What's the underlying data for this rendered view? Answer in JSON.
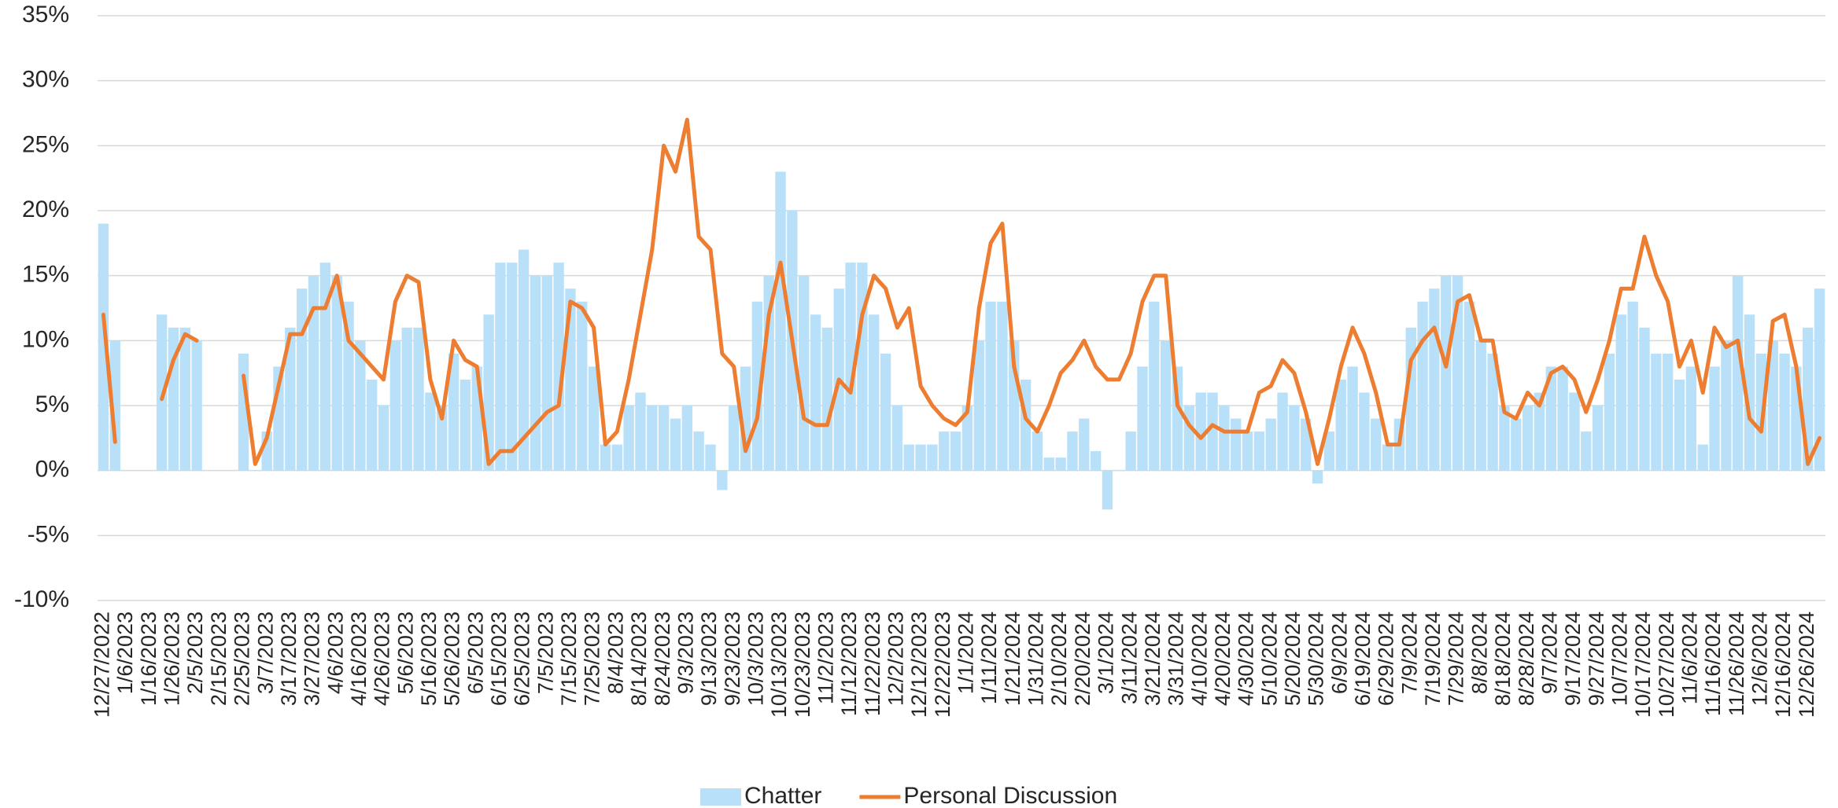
{
  "chart_data": {
    "type": "bar",
    "categories": [
      "12/27/2022",
      null,
      "1/6/2023",
      null,
      "1/16/2023",
      null,
      "1/26/2023",
      null,
      "2/5/2023",
      null,
      "2/15/2023",
      null,
      "2/25/2023",
      null,
      "3/7/2023",
      null,
      "3/17/2023",
      null,
      "3/27/2023",
      null,
      "4/6/2023",
      null,
      "4/16/2023",
      null,
      "4/26/2023",
      null,
      "5/6/2023",
      null,
      "5/16/2023",
      null,
      "5/26/2023",
      null,
      "6/5/2023",
      null,
      "6/15/2023",
      null,
      "6/25/2023",
      null,
      "7/5/2023",
      null,
      "7/15/2023",
      null,
      "7/25/2023",
      null,
      "8/4/2023",
      null,
      "8/14/2023",
      null,
      "8/24/2023",
      null,
      "9/3/2023",
      null,
      "9/13/2023",
      null,
      "9/23/2023",
      null,
      "10/3/2023",
      null,
      "10/13/2023",
      null,
      "10/23/2023",
      null,
      "11/2/2023",
      null,
      "11/12/2023",
      null,
      "11/22/2023",
      null,
      "12/2/2023",
      null,
      "12/12/2023",
      null,
      "12/22/2023",
      null,
      "1/1/2024",
      null,
      "1/11/2024",
      null,
      "1/21/2024",
      null,
      "1/31/2024",
      null,
      "2/10/2024",
      null,
      "2/20/2024",
      null,
      "3/1/2024",
      null,
      "3/11/2024",
      null,
      "3/21/2024",
      null,
      "3/31/2024",
      null,
      "4/10/2024",
      null,
      "4/20/2024",
      null,
      "4/30/2024",
      null,
      "5/10/2024",
      null,
      "5/20/2024",
      null,
      "5/30/2024",
      null,
      "6/9/2024",
      null,
      "6/19/2024",
      null,
      "6/29/2024",
      null,
      "7/9/2024",
      null,
      "7/19/2024",
      null,
      "7/29/2024",
      null,
      "8/8/2024",
      null,
      "8/18/2024",
      null,
      "8/28/2024",
      null,
      "9/7/2024",
      null,
      "9/17/2024",
      null,
      "9/27/2024",
      null,
      "10/7/2024",
      null,
      "10/17/2024",
      null,
      "10/27/2024",
      null,
      "11/6/2024",
      null,
      "11/16/2024",
      null,
      "11/26/2024",
      null,
      "12/6/2024",
      null,
      "12/16/2024",
      null,
      "12/26/2024",
      null
    ],
    "series": [
      {
        "name": "Chatter",
        "type": "bar",
        "color": "#b8e0f8",
        "values": [
          19,
          10,
          null,
          null,
          null,
          12,
          11,
          11,
          10,
          null,
          null,
          null,
          9,
          0,
          3,
          8,
          11,
          14,
          15,
          16,
          15,
          13,
          10,
          7,
          5,
          10,
          11,
          11,
          6,
          5,
          9,
          7,
          8,
          12,
          16,
          16,
          17,
          15,
          15,
          16,
          14,
          13,
          8,
          2,
          2,
          5,
          6,
          5,
          5,
          4,
          5,
          3,
          2,
          -1.5,
          5,
          8,
          13,
          15,
          23,
          20,
          15,
          12,
          11,
          14,
          16,
          16,
          12,
          9,
          5,
          2,
          2,
          2,
          3,
          3,
          5,
          10,
          13,
          13,
          10,
          7,
          3,
          1,
          1,
          3,
          4,
          1.5,
          -3,
          0,
          3,
          8,
          13,
          10,
          8,
          5,
          6,
          6,
          5,
          4,
          3,
          3,
          4,
          6,
          5,
          4,
          -1,
          3,
          7,
          8,
          6,
          4,
          2,
          4,
          11,
          13,
          14,
          15,
          15,
          13,
          10,
          9,
          5,
          4,
          5,
          6,
          8,
          8,
          6,
          3,
          5,
          9,
          12,
          13,
          11,
          9,
          9,
          7,
          8,
          2,
          8,
          10,
          15,
          12,
          9,
          10,
          9,
          8,
          11,
          14
        ]
      },
      {
        "name": "Personal Discussion",
        "type": "line",
        "color": "#ed7d31",
        "values": [
          12,
          2.2,
          null,
          null,
          null,
          5.5,
          8.5,
          10.5,
          10,
          null,
          null,
          null,
          7.3,
          0.5,
          2.5,
          6.5,
          10.5,
          10.5,
          12.5,
          12.5,
          15,
          10,
          9,
          8,
          7,
          13,
          15,
          14.5,
          7,
          4,
          10,
          8.5,
          8,
          0.5,
          1.5,
          1.5,
          2.5,
          3.5,
          4.5,
          5,
          13,
          12.5,
          11,
          2,
          3,
          7,
          12,
          17,
          25,
          23,
          27,
          18,
          17,
          9,
          8,
          1.5,
          4,
          12,
          16,
          10,
          4,
          3.5,
          3.5,
          7,
          6,
          12,
          15,
          14,
          11,
          12.5,
          6.5,
          5,
          4,
          3.5,
          4.5,
          12.5,
          17.5,
          19,
          8,
          4,
          3,
          5,
          7.5,
          8.5,
          10,
          8,
          7,
          7,
          9,
          13,
          15,
          15,
          5,
          3.5,
          2.5,
          3.5,
          3,
          3,
          3,
          6,
          6.5,
          8.5,
          7.5,
          4.5,
          0.5,
          4,
          8,
          11,
          9,
          6,
          2,
          2,
          8.5,
          10,
          11,
          8,
          13,
          13.5,
          10,
          10,
          4.5,
          4,
          6,
          5,
          7.5,
          8,
          7,
          4.5,
          7,
          10,
          14,
          14,
          18,
          15,
          13,
          8,
          10,
          6,
          11,
          9.5,
          10,
          4,
          3,
          11.5,
          12,
          8,
          0.5,
          2.5
        ]
      }
    ],
    "ylim": [
      -10,
      35
    ],
    "yticks": [
      {
        "value": -10,
        "label": "-10%"
      },
      {
        "value": -5,
        "label": "-5%"
      },
      {
        "value": 0,
        "label": "0%"
      },
      {
        "value": 5,
        "label": "5%"
      },
      {
        "value": 10,
        "label": "10%"
      },
      {
        "value": 15,
        "label": "15%"
      },
      {
        "value": 20,
        "label": "20%"
      },
      {
        "value": 25,
        "label": "25%"
      },
      {
        "value": 30,
        "label": "30%"
      },
      {
        "value": 35,
        "label": "35%"
      }
    ],
    "grid": true,
    "legend": "bottom"
  }
}
